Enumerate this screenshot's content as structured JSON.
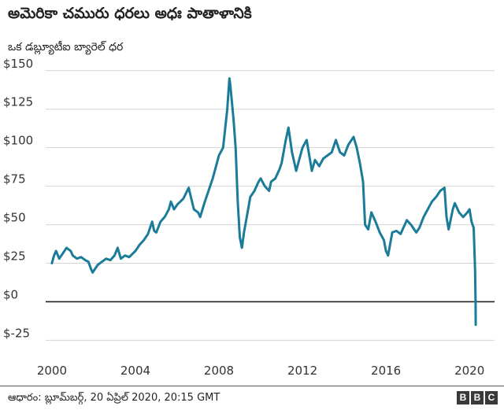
{
  "chart_data": {
    "type": "line",
    "title": "అమెరికా చమురు ధరలు అధః పాతాళానికి",
    "ylabel": "ఒక డబ్ల్యూటీఐ బ్యారెల్ ధర",
    "xlabel": "",
    "source": "ఆధారం: బ్లూమ్‌బర్గ్, 20 ఏప్రిల్ 2020, 20:15 GMT",
    "logo": "BBC",
    "x_ticks": [
      2000,
      2004,
      2008,
      2012,
      2016,
      2020
    ],
    "x_tick_labels": [
      "2000",
      "2004",
      "2008",
      "2012",
      "2016",
      "2020"
    ],
    "y_ticks": [
      -25,
      0,
      25,
      50,
      75,
      100,
      125,
      150
    ],
    "y_tick_labels": [
      "$-25",
      "$0",
      "$25",
      "$50",
      "$75",
      "$100",
      "$125",
      "$150"
    ],
    "xlim": [
      1999.4,
      2021.2
    ],
    "ylim": [
      -35,
      155
    ],
    "grid": true,
    "series": [
      {
        "name": "WTI crude oil price (USD per barrel)",
        "color": "#1a7c99",
        "x": [
          2000.0,
          2000.1,
          2000.2,
          2000.35,
          2000.5,
          2000.7,
          2000.9,
          2001.0,
          2001.2,
          2001.4,
          2001.6,
          2001.75,
          2001.85,
          2001.95,
          2002.0,
          2002.2,
          2002.4,
          2002.6,
          2002.8,
          2003.0,
          2003.15,
          2003.3,
          2003.5,
          2003.7,
          2004.0,
          2004.2,
          2004.4,
          2004.6,
          2004.8,
          2004.9,
          2005.0,
          2005.2,
          2005.4,
          2005.6,
          2005.7,
          2005.85,
          2006.0,
          2006.3,
          2006.55,
          2006.8,
          2007.0,
          2007.1,
          2007.3,
          2007.5,
          2007.7,
          2007.9,
          2008.0,
          2008.2,
          2008.4,
          2008.5,
          2008.55,
          2008.7,
          2008.8,
          2008.9,
          2009.0,
          2009.1,
          2009.2,
          2009.4,
          2009.5,
          2009.7,
          2009.9,
          2010.0,
          2010.2,
          2010.4,
          2010.5,
          2010.7,
          2010.9,
          2011.0,
          2011.2,
          2011.33,
          2011.5,
          2011.7,
          2011.9,
          2012.0,
          2012.2,
          2012.45,
          2012.6,
          2012.8,
          2013.0,
          2013.2,
          2013.4,
          2013.6,
          2013.8,
          2014.0,
          2014.2,
          2014.45,
          2014.6,
          2014.75,
          2014.9,
          2015.0,
          2015.15,
          2015.3,
          2015.5,
          2015.7,
          2015.9,
          2016.0,
          2016.1,
          2016.3,
          2016.5,
          2016.7,
          2016.9,
          2017.0,
          2017.2,
          2017.45,
          2017.6,
          2017.8,
          2018.0,
          2018.2,
          2018.4,
          2018.6,
          2018.8,
          2018.9,
          2019.0,
          2019.2,
          2019.3,
          2019.5,
          2019.7,
          2019.9,
          2020.0,
          2020.1,
          2020.2,
          2020.25,
          2020.27,
          2020.29,
          2020.3
        ],
        "values": [
          25,
          30,
          33,
          28,
          31,
          35,
          33,
          30,
          28,
          29,
          27,
          26,
          22,
          19,
          20,
          24,
          26,
          28,
          27,
          30,
          35,
          28,
          30,
          29,
          33,
          37,
          40,
          44,
          52,
          46,
          45,
          52,
          55,
          60,
          65,
          60,
          63,
          67,
          74,
          60,
          58,
          55,
          64,
          72,
          80,
          90,
          95,
          100,
          125,
          145,
          140,
          118,
          100,
          65,
          42,
          35,
          45,
          60,
          68,
          72,
          78,
          80,
          75,
          72,
          78,
          80,
          86,
          90,
          105,
          113,
          97,
          85,
          95,
          100,
          105,
          85,
          92,
          88,
          93,
          95,
          97,
          105,
          97,
          95,
          102,
          107,
          100,
          90,
          78,
          50,
          47,
          58,
          52,
          45,
          40,
          33,
          30,
          45,
          46,
          44,
          50,
          53,
          50,
          45,
          48,
          55,
          60,
          65,
          68,
          72,
          74,
          55,
          47,
          60,
          64,
          58,
          55,
          58,
          60,
          52,
          48,
          28,
          20,
          0,
          -15
        ]
      }
    ]
  }
}
